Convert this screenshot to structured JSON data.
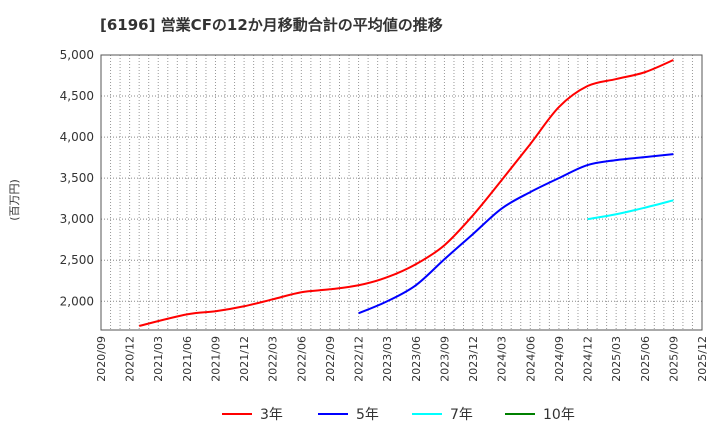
{
  "chart_data": {
    "type": "line",
    "title": "[6196]  営業CFの12か月移動合計の平均値の推移",
    "ylabel": "(百万円)",
    "xlabel": "",
    "ylim": [
      1650,
      5000
    ],
    "yticks": [
      2000,
      2500,
      3000,
      3500,
      4000,
      4500,
      5000
    ],
    "ytick_labels": [
      "2,000",
      "2,500",
      "3,000",
      "3,500",
      "4,000",
      "4,500",
      "5,000"
    ],
    "xticks": [
      "2020/09",
      "2020/12",
      "2021/03",
      "2021/06",
      "2021/09",
      "2021/12",
      "2022/03",
      "2022/06",
      "2022/09",
      "2022/12",
      "2023/03",
      "2023/06",
      "2023/09",
      "2023/12",
      "2024/03",
      "2024/06",
      "2024/09",
      "2024/12",
      "2025/03",
      "2025/06",
      "2025/09",
      "2025/12"
    ],
    "grid": true,
    "legend_position": "bottom",
    "series": [
      {
        "name": "3年",
        "color": "#ff0000",
        "x": [
          "2021/01",
          "2021/06",
          "2021/09",
          "2021/12",
          "2022/03",
          "2022/06",
          "2022/09",
          "2022/12",
          "2023/03",
          "2023/06",
          "2023/09",
          "2023/12",
          "2024/03",
          "2024/06",
          "2024/09",
          "2024/12",
          "2025/03",
          "2025/06",
          "2025/09"
        ],
        "values": [
          1700,
          1840,
          1878,
          1939,
          2024,
          2110,
          2146,
          2195,
          2293,
          2451,
          2683,
          3049,
          3476,
          3915,
          4366,
          4622,
          4707,
          4790,
          4939
        ]
      },
      {
        "name": "5年",
        "color": "#0000ff",
        "x": [
          "2022/12",
          "2023/03",
          "2023/06",
          "2023/09",
          "2023/12",
          "2024/03",
          "2024/06",
          "2024/09",
          "2024/12",
          "2025/03",
          "2025/06",
          "2025/09"
        ],
        "values": [
          1854,
          2000,
          2195,
          2512,
          2820,
          3130,
          3330,
          3500,
          3659,
          3720,
          3756,
          3793
        ]
      },
      {
        "name": "7年",
        "color": "#00ffff",
        "x": [
          "2024/12",
          "2025/03",
          "2025/06",
          "2025/09"
        ],
        "values": [
          3000,
          3060,
          3140,
          3230
        ]
      },
      {
        "name": "10年",
        "color": "#008000",
        "x": [],
        "values": []
      }
    ]
  }
}
